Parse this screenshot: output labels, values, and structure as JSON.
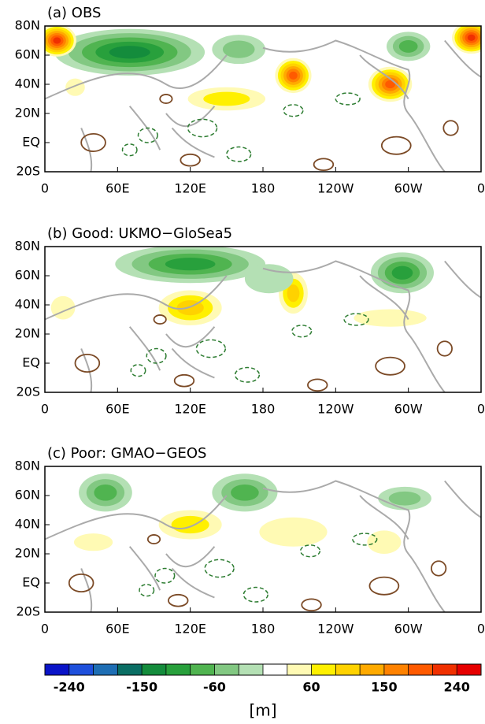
{
  "panels": [
    {
      "title": "(a) OBS"
    },
    {
      "title": "(b) Good: UKMO−GloSea5"
    },
    {
      "title": "(c) Poor: GMAO−GEOS"
    }
  ],
  "axes": {
    "latlim": [
      -20,
      80
    ],
    "lonlim": [
      0,
      360
    ],
    "lat_ticks": [
      {
        "value": 80,
        "label": "80N"
      },
      {
        "value": 60,
        "label": "60N"
      },
      {
        "value": 40,
        "label": "40N"
      },
      {
        "value": 20,
        "label": "20N"
      },
      {
        "value": 0,
        "label": "EQ"
      },
      {
        "value": -20,
        "label": "20S"
      }
    ],
    "lon_ticks": [
      {
        "value": 0,
        "label": "0"
      },
      {
        "value": 60,
        "label": "60E"
      },
      {
        "value": 120,
        "label": "120E"
      },
      {
        "value": 180,
        "label": "180"
      },
      {
        "value": 240,
        "label": "120W"
      },
      {
        "value": 300,
        "label": "60W"
      },
      {
        "value": 360,
        "label": "0"
      }
    ]
  },
  "colorbar": {
    "levels": [
      -240,
      -210,
      -180,
      -150,
      -120,
      -90,
      -60,
      -30,
      0,
      30,
      60,
      90,
      120,
      150,
      180,
      210,
      240
    ],
    "colors": [
      "#0a14c8",
      "#1e50dc",
      "#1e6eb4",
      "#0a6e64",
      "#148c3c",
      "#28a03c",
      "#50b450",
      "#82c882",
      "#b4e0b4",
      "#ffffff",
      "#fffab4",
      "#fff000",
      "#ffd200",
      "#ffaa00",
      "#ff8200",
      "#ff5a00",
      "#f03000",
      "#e60000"
    ],
    "ticks": [
      -240,
      -150,
      -60,
      60,
      150,
      240
    ],
    "unit": "[m]"
  }
}
